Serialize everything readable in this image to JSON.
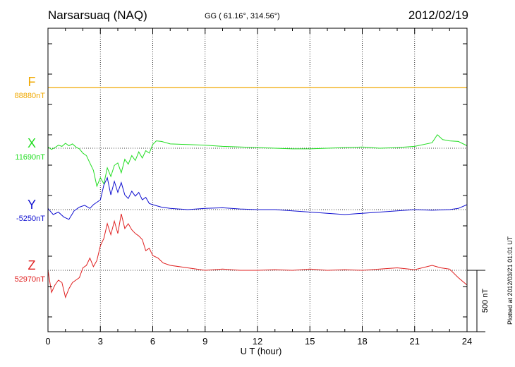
{
  "header": {
    "station": "Narsarsuaq (NAQ)",
    "coords": "GG ( 61.16°, 314.56°)",
    "date": "2012/02/19"
  },
  "footer": {
    "plotted": "Plotted at 2012/03/21 01:01 UT"
  },
  "chart_data": {
    "type": "line",
    "xlabel": "U T (hour)",
    "xlim": [
      0,
      24
    ],
    "xticks": [
      0,
      3,
      6,
      9,
      12,
      15,
      18,
      21,
      24
    ],
    "scale_bar": {
      "label": "500 nT",
      "value_nT": 500
    },
    "colors": {
      "F": "#f0a800",
      "X": "#22dd22",
      "Y": "#1010d0",
      "Z": "#e02020"
    },
    "series": [
      {
        "name": "F",
        "baseline_label": "88880nT",
        "x": [
          0,
          24
        ],
        "y": [
          0,
          0
        ]
      },
      {
        "name": "X",
        "baseline_label": "11690nT",
        "x": [
          0,
          0.2,
          0.4,
          0.6,
          0.8,
          1.0,
          1.2,
          1.4,
          1.6,
          1.8,
          2.0,
          2.2,
          2.4,
          2.6,
          2.8,
          3.0,
          3.2,
          3.4,
          3.6,
          3.8,
          4.0,
          4.2,
          4.4,
          4.6,
          4.8,
          5.0,
          5.2,
          5.4,
          5.6,
          5.8,
          6.0,
          6.2,
          6.5,
          7.0,
          8,
          9,
          10,
          11,
          12,
          13,
          14,
          15,
          16,
          17,
          18,
          19,
          20,
          21,
          22,
          22.3,
          22.6,
          23,
          23.5,
          24
        ],
        "y": [
          10,
          -10,
          5,
          25,
          15,
          40,
          20,
          35,
          10,
          -5,
          -40,
          -60,
          -120,
          -180,
          -310,
          -240,
          -290,
          -160,
          -230,
          -140,
          -120,
          -200,
          -90,
          -130,
          -60,
          -100,
          -30,
          -80,
          -20,
          -40,
          30,
          60,
          55,
          35,
          30,
          25,
          15,
          10,
          5,
          0,
          -5,
          -5,
          0,
          5,
          10,
          0,
          5,
          15,
          45,
          110,
          70,
          60,
          55,
          20
        ]
      },
      {
        "name": "Y",
        "baseline_label": "-5250nT",
        "x": [
          0,
          0.3,
          0.6,
          0.9,
          1.2,
          1.5,
          1.8,
          2.1,
          2.4,
          2.6,
          2.8,
          3.0,
          3.2,
          3.4,
          3.6,
          3.8,
          4.0,
          4.2,
          4.4,
          4.6,
          4.8,
          5.0,
          5.2,
          5.4,
          5.6,
          5.8,
          6.0,
          6.5,
          7,
          8,
          9,
          10,
          11,
          12,
          13,
          14,
          15,
          16,
          17,
          18,
          19,
          20,
          21,
          22,
          23,
          23.5,
          24
        ],
        "y": [
          10,
          -40,
          -20,
          -60,
          -80,
          -10,
          20,
          35,
          10,
          40,
          60,
          80,
          200,
          260,
          120,
          230,
          140,
          220,
          120,
          90,
          150,
          110,
          140,
          80,
          100,
          50,
          40,
          20,
          10,
          0,
          10,
          15,
          5,
          0,
          0,
          -10,
          -20,
          -30,
          -40,
          -30,
          -20,
          -10,
          0,
          -5,
          0,
          10,
          40
        ]
      },
      {
        "name": "Z",
        "baseline_label": "52970nT",
        "x": [
          0,
          0.2,
          0.4,
          0.6,
          0.8,
          1.0,
          1.2,
          1.4,
          1.6,
          1.8,
          2.0,
          2.2,
          2.4,
          2.6,
          2.8,
          3.0,
          3.2,
          3.4,
          3.6,
          3.8,
          4.0,
          4.2,
          4.4,
          4.6,
          4.8,
          5.0,
          5.2,
          5.4,
          5.6,
          5.8,
          6.0,
          6.3,
          6.6,
          7.0,
          8,
          9,
          10,
          11,
          12,
          13,
          14,
          15,
          16,
          17,
          18,
          19,
          20,
          21,
          22,
          22.5,
          23,
          23.5,
          24
        ],
        "y": [
          0,
          -180,
          -120,
          -80,
          -100,
          -220,
          -150,
          -100,
          -80,
          -60,
          20,
          40,
          100,
          30,
          80,
          200,
          260,
          380,
          290,
          400,
          300,
          460,
          340,
          380,
          330,
          300,
          280,
          250,
          160,
          180,
          120,
          100,
          60,
          40,
          20,
          0,
          10,
          0,
          0,
          5,
          0,
          10,
          0,
          5,
          0,
          10,
          20,
          5,
          40,
          20,
          10,
          -60,
          -120
        ]
      }
    ]
  }
}
